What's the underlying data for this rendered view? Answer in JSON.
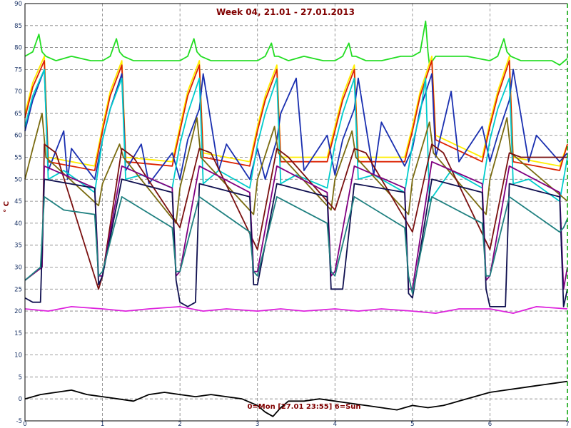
{
  "chart_data": {
    "type": "line",
    "title": "Week 04, 21.01 - 27.01.2013",
    "xlabel": "",
    "ylabel": "° C",
    "annotation": "0=Mon [27.01 23:55] 6=Sun",
    "xlim": [
      0,
      7
    ],
    "ylim": [
      -5,
      90
    ],
    "xticks": [
      "0",
      "1",
      "2",
      "3",
      "4",
      "5",
      "6",
      "7"
    ],
    "yticks": [
      "-5",
      "0",
      "5",
      "10",
      "15",
      "20",
      "25",
      "30",
      "35",
      "40",
      "45",
      "50",
      "55",
      "60",
      "65",
      "70",
      "75",
      "80",
      "85",
      "90"
    ],
    "grid": true,
    "colors": {
      "background": "#ffffff",
      "grid": "#7f7f7f",
      "frame": "#000000",
      "end_marker": "#00a000"
    },
    "series": [
      {
        "color": "#22dd22",
        "x": [
          0,
          0.1,
          0.18,
          0.22,
          0.27,
          0.4,
          0.6,
          0.85,
          1.0,
          1.1,
          1.18,
          1.22,
          1.27,
          1.4,
          1.6,
          1.85,
          2.0,
          2.1,
          2.18,
          2.22,
          2.27,
          2.4,
          2.6,
          2.85,
          3.0,
          3.1,
          3.18,
          3.22,
          3.27,
          3.4,
          3.6,
          3.85,
          4.0,
          4.1,
          4.18,
          4.22,
          4.27,
          4.4,
          4.6,
          4.85,
          5.0,
          5.1,
          5.17,
          5.2,
          5.22,
          5.3,
          5.5,
          5.7,
          6.0,
          6.1,
          6.18,
          6.22,
          6.27,
          6.4,
          6.6,
          6.8,
          6.9,
          7.0
        ],
        "y": [
          78,
          79,
          83,
          79,
          78,
          77,
          78,
          77,
          77,
          78,
          82,
          79,
          78,
          77,
          77,
          77,
          77,
          78,
          82,
          79,
          78,
          77,
          77,
          77,
          77,
          78,
          81,
          78,
          78,
          77,
          78,
          77,
          77,
          78,
          81,
          78,
          78,
          77,
          77,
          78,
          78,
          79,
          86,
          79,
          76,
          78,
          78,
          78,
          77,
          78,
          82,
          79,
          78,
          77,
          77,
          77,
          76,
          77.5
        ]
      },
      {
        "color": "#ffee00",
        "x": [
          0,
          0.1,
          0.25,
          0.3,
          0.9,
          1.0,
          1.1,
          1.25,
          1.3,
          1.9,
          2.0,
          2.1,
          2.25,
          2.3,
          2.9,
          3.0,
          3.1,
          3.25,
          3.3,
          3.9,
          4.0,
          4.1,
          4.25,
          4.3,
          4.9,
          5.0,
          5.1,
          5.25,
          5.3,
          5.9,
          6.0,
          6.1,
          6.25,
          6.3,
          6.9,
          7.0
        ],
        "y": [
          65,
          72,
          78,
          55,
          53,
          62,
          70,
          77,
          55,
          54,
          62,
          70,
          77,
          56,
          54,
          62,
          69,
          76,
          55,
          55,
          62,
          69,
          76,
          55,
          55,
          62,
          70,
          78,
          60,
          55,
          63,
          70,
          78,
          55,
          53,
          58
        ]
      },
      {
        "color": "#dd2200",
        "x": [
          0,
          0.1,
          0.25,
          0.3,
          0.9,
          1.0,
          1.1,
          1.25,
          1.3,
          1.9,
          2.0,
          2.1,
          2.25,
          2.3,
          2.9,
          3.0,
          3.1,
          3.25,
          3.3,
          3.9,
          4.0,
          4.1,
          4.25,
          4.3,
          4.9,
          5.0,
          5.1,
          5.25,
          5.3,
          5.9,
          6.0,
          6.1,
          6.25,
          6.3,
          6.9,
          7.0
        ],
        "y": [
          64,
          71,
          77,
          54,
          52,
          61,
          69,
          76,
          54,
          53,
          61,
          69,
          76,
          55,
          53,
          61,
          68,
          75,
          54,
          54,
          61,
          68,
          75,
          54,
          54,
          61,
          69,
          77,
          59,
          54,
          62,
          69,
          77,
          54,
          52,
          58
        ]
      },
      {
        "color": "#1a2fb0",
        "x": [
          0,
          0.1,
          0.25,
          0.3,
          0.5,
          0.55,
          0.6,
          0.9,
          1.0,
          1.1,
          1.25,
          1.3,
          1.5,
          1.6,
          1.9,
          2.0,
          2.1,
          2.25,
          2.3,
          2.5,
          2.6,
          2.9,
          3.0,
          3.1,
          3.25,
          3.3,
          3.5,
          3.6,
          3.9,
          4.0,
          4.1,
          4.25,
          4.3,
          4.5,
          4.6,
          4.9,
          5.0,
          5.1,
          5.25,
          5.3,
          5.5,
          5.6,
          5.9,
          6.0,
          6.1,
          6.25,
          6.3,
          6.5,
          6.6,
          6.9,
          7.0
        ],
        "y": [
          61,
          68,
          75,
          52,
          61,
          50,
          57,
          50,
          59,
          66,
          74,
          52,
          58,
          49,
          56,
          50,
          59,
          66,
          74,
          52,
          58,
          50,
          57,
          50,
          59,
          65,
          73,
          52,
          60,
          51,
          59,
          66,
          73,
          51,
          63,
          53,
          57,
          66,
          74,
          55,
          70,
          54,
          62,
          54,
          60,
          68,
          75,
          54,
          60,
          54,
          56
        ]
      },
      {
        "color": "#00cccc",
        "x": [
          0,
          0.1,
          0.25,
          0.3,
          0.5,
          0.9,
          1.0,
          1.1,
          1.25,
          1.3,
          1.5,
          1.9,
          2.0,
          2.1,
          2.25,
          2.3,
          2.5,
          2.9,
          3.0,
          3.1,
          3.25,
          3.3,
          3.5,
          3.9,
          4.0,
          4.1,
          4.25,
          4.3,
          4.5,
          4.9,
          5.0,
          5.1,
          5.17,
          5.22,
          5.5,
          5.9,
          6.0,
          6.1,
          6.25,
          6.3,
          6.5,
          6.9,
          7.0
        ],
        "y": [
          62,
          69,
          75,
          50,
          52,
          47,
          59,
          66,
          73,
          50,
          51,
          48,
          58,
          65,
          73,
          49,
          52,
          48,
          58,
          65,
          73,
          49,
          51,
          48,
          58,
          65,
          73,
          50,
          51,
          47,
          58,
          65,
          73,
          45,
          52,
          48,
          59,
          66,
          73,
          49,
          50,
          45,
          55
        ]
      },
      {
        "color": "#7a6b10",
        "x": [
          0,
          0.1,
          0.22,
          0.27,
          0.95,
          1.0,
          1.22,
          1.27,
          1.95,
          2.0,
          2.22,
          2.27,
          2.95,
          3.0,
          3.22,
          3.27,
          3.95,
          4.0,
          4.22,
          4.27,
          4.95,
          5.0,
          5.22,
          5.27,
          5.95,
          6.0,
          6.22,
          6.27,
          7.0
        ],
        "y": [
          50,
          57,
          65,
          55,
          44,
          49,
          58,
          55,
          40,
          48,
          64,
          55,
          42,
          50,
          62,
          56,
          43,
          50,
          61,
          55,
          42,
          50,
          63,
          56,
          42,
          50,
          64,
          56,
          45
        ]
      },
      {
        "color": "#7a1010",
        "x": [
          0,
          0.22,
          0.25,
          0.4,
          0.95,
          1.0,
          1.25,
          1.4,
          2.0,
          2.25,
          2.4,
          3.0,
          3.25,
          3.4,
          4.0,
          4.25,
          4.4,
          5.0,
          5.25,
          5.4,
          6.0,
          6.25,
          6.4,
          7.0
        ],
        "y": [
          27,
          30,
          58,
          56,
          25,
          28,
          57,
          55,
          39,
          57,
          56,
          34,
          57,
          55,
          43,
          57,
          56,
          38,
          58,
          56,
          34,
          56,
          55,
          55
        ]
      },
      {
        "color": "#800080",
        "x": [
          0,
          0.22,
          0.25,
          0.9,
          0.95,
          1.0,
          1.25,
          1.9,
          1.95,
          2.0,
          2.25,
          2.9,
          2.95,
          3.0,
          3.25,
          3.9,
          3.95,
          4.0,
          4.25,
          4.9,
          4.95,
          5.0,
          5.25,
          5.9,
          5.95,
          6.0,
          6.25,
          6.9,
          6.95,
          7.0
        ],
        "y": [
          27,
          30,
          53,
          48,
          28,
          28,
          53,
          48,
          28,
          29,
          53,
          47,
          29,
          29,
          53,
          47,
          28,
          29,
          53,
          48,
          25,
          25,
          54,
          49,
          27,
          28,
          53,
          47,
          25,
          30
        ]
      },
      {
        "color": "#101050",
        "x": [
          0,
          0.1,
          0.2,
          0.25,
          0.9,
          0.95,
          1.0,
          1.25,
          1.9,
          1.95,
          2.0,
          2.1,
          2.2,
          2.25,
          2.9,
          2.95,
          3.0,
          3.25,
          3.9,
          3.95,
          4.0,
          4.1,
          4.25,
          4.9,
          4.95,
          5.0,
          5.25,
          5.9,
          5.95,
          6.0,
          6.2,
          6.25,
          6.9,
          6.95,
          7.0
        ],
        "y": [
          23,
          22,
          22,
          50,
          48,
          26,
          28,
          50,
          47,
          27,
          22,
          21,
          22,
          49,
          46,
          26,
          26,
          49,
          46,
          25,
          25,
          25,
          49,
          47,
          24,
          23,
          50,
          47,
          25,
          21,
          21,
          49,
          46,
          21,
          25
        ]
      },
      {
        "color": "#1f8080",
        "x": [
          0,
          0.2,
          0.25,
          0.5,
          0.9,
          0.95,
          1.0,
          1.25,
          1.9,
          1.95,
          2.0,
          2.25,
          2.9,
          2.95,
          3.0,
          3.25,
          3.9,
          3.95,
          4.0,
          4.25,
          4.9,
          4.95,
          5.0,
          5.25,
          5.9,
          5.95,
          6.0,
          6.25,
          6.9,
          6.95,
          7.0
        ],
        "y": [
          27,
          30,
          46,
          43,
          42,
          28,
          29,
          46,
          39,
          29,
          29,
          46,
          38,
          29,
          28,
          46,
          40,
          29,
          28,
          46,
          39,
          28,
          24,
          46,
          40,
          28,
          28,
          46,
          38,
          39,
          41
        ]
      },
      {
        "color": "#dd22dd",
        "x": [
          0,
          0.3,
          0.6,
          1.0,
          1.3,
          1.6,
          2.0,
          2.3,
          2.6,
          3.0,
          3.3,
          3.6,
          4.0,
          4.3,
          4.6,
          5.0,
          5.3,
          5.6,
          6.0,
          6.3,
          6.6,
          7.0
        ],
        "y": [
          20.5,
          20,
          21,
          20.5,
          20,
          20.5,
          21,
          20,
          20.5,
          20,
          20.5,
          20,
          20.5,
          20,
          20.5,
          20,
          19.5,
          20.5,
          20.5,
          19.5,
          21,
          20.5
        ]
      },
      {
        "color": "#000000",
        "x": [
          0,
          0.2,
          0.4,
          0.6,
          0.8,
          1.0,
          1.2,
          1.4,
          1.6,
          1.8,
          2.0,
          2.2,
          2.4,
          2.6,
          2.8,
          3.0,
          3.1,
          3.2,
          3.3,
          3.4,
          3.6,
          3.8,
          4.0,
          4.2,
          4.4,
          4.6,
          4.8,
          5.0,
          5.2,
          5.4,
          5.6,
          5.8,
          6.0,
          6.2,
          6.4,
          6.6,
          6.8,
          7.0
        ],
        "y": [
          0,
          1,
          1.5,
          2,
          1,
          0.5,
          0,
          -0.5,
          1,
          1.5,
          1,
          0.5,
          1,
          0.5,
          0,
          -1.5,
          -3,
          -4,
          -2,
          -0.5,
          -0.5,
          0,
          -0.5,
          -1,
          -1.5,
          -2,
          -2.5,
          -1.5,
          -2,
          -1.5,
          -0.5,
          0.5,
          1.5,
          2,
          2.5,
          3,
          3.5,
          4
        ]
      }
    ]
  }
}
